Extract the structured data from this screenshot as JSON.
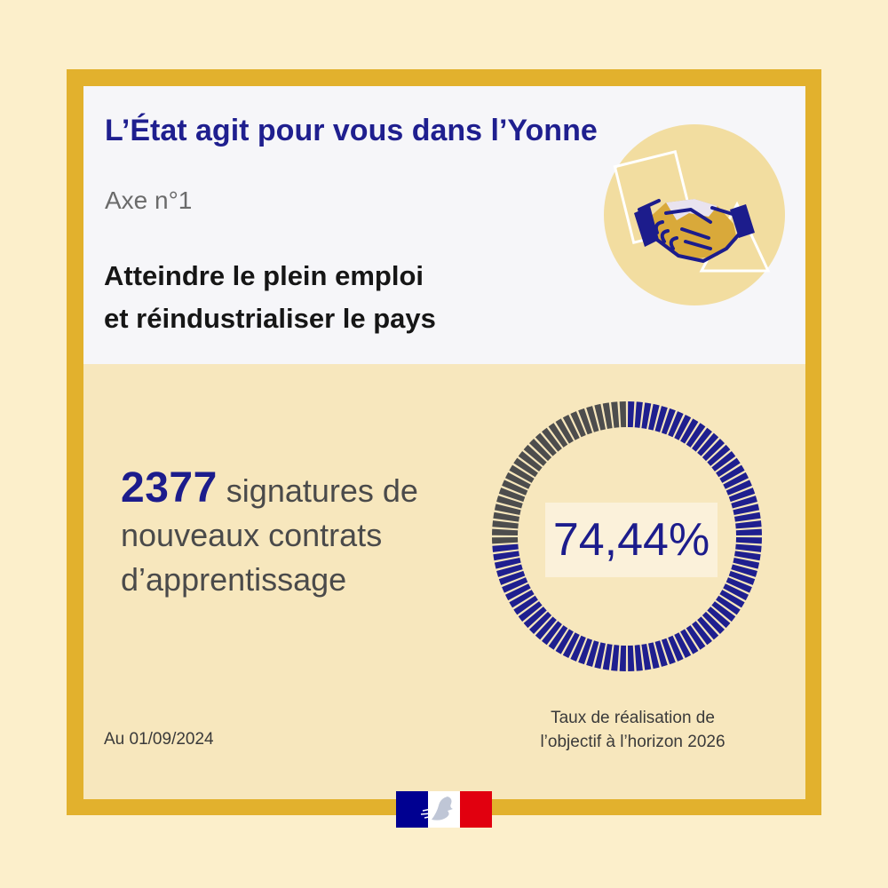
{
  "title": "L’État agit pour vous dans l’Yonne",
  "axis_label": "Axe n°1",
  "headline": {
    "line1": "Atteindre le plein emploi",
    "line2": "et réindustrialiser le pays"
  },
  "stat": {
    "number": "2377",
    "line1_rest": "signatures de",
    "line2": "nouveaux contrats",
    "line3": "d’apprentissage"
  },
  "progress": {
    "value_text": "74,44%",
    "fraction": 0.7444,
    "caption_line1": "Taux de réalisation de",
    "caption_line2": "l’objectif à l’horizon 2026"
  },
  "date_text": "Au 01/09/2024",
  "illustration": {
    "icon": "handshake-icon"
  },
  "emblem": {
    "icon": "republique-francaise-flag-icon"
  },
  "colors": {
    "page_bg": "#fcefcb",
    "frame": "#e2b12d",
    "navy": "#1c1c8c",
    "done_segment": "#1f1f8f",
    "remaining_segment": "#4d4d4d"
  }
}
